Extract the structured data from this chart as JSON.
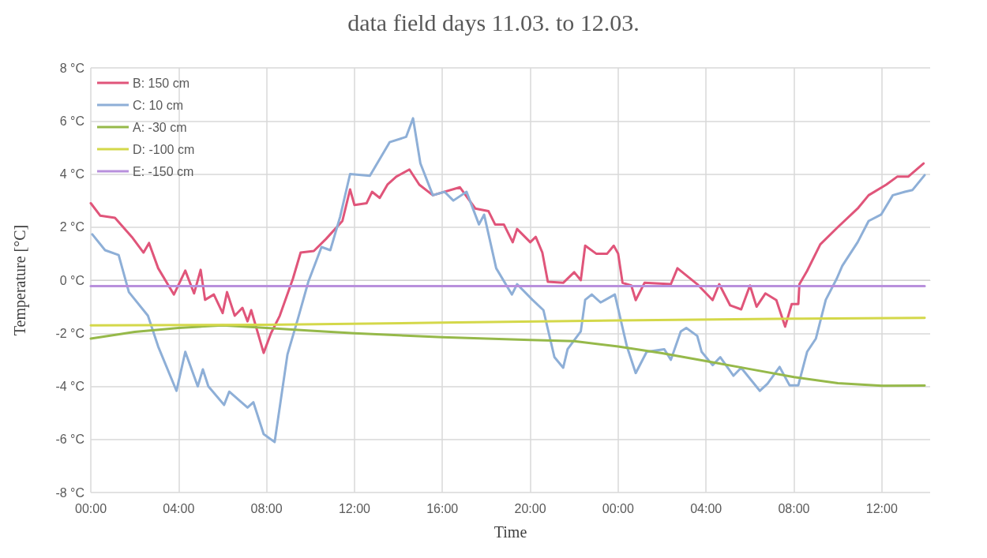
{
  "chart_data": {
    "type": "line",
    "title": "data field days 11.03. to 12.03.",
    "xlabel": "Time",
    "ylabel": "Temperature [°C]",
    "xlim": [
      "--03-11T00:00",
      "--03-12T14:12"
    ],
    "xticks": [
      {
        "value": "--03-11T00:00",
        "label": "00:00"
      },
      {
        "value": "--03-11T04:00",
        "label": "04:00"
      },
      {
        "value": "--03-11T08:00",
        "label": "08:00"
      },
      {
        "value": "--03-11T12:00",
        "label": "12:00"
      },
      {
        "value": "--03-11T16:00",
        "label": "16:00"
      },
      {
        "value": "--03-11T20:00",
        "label": "20:00"
      },
      {
        "value": "--03-12T00:00",
        "label": "00:00"
      },
      {
        "value": "--03-12T04:00",
        "label": "04:00"
      },
      {
        "value": "--03-12T08:00",
        "label": "08:00"
      },
      {
        "value": "--03-12T12:00",
        "label": "12:00"
      }
    ],
    "ylim": [
      -8,
      8
    ],
    "yticks": [
      {
        "value": -8,
        "label": "-8 °C"
      },
      {
        "value": -6,
        "label": "-6 °C"
      },
      {
        "value": -4,
        "label": "-4 °C"
      },
      {
        "value": -2,
        "label": "-2 °C"
      },
      {
        "value": 0,
        "label": "0 °C"
      },
      {
        "value": 2,
        "label": "2 °C"
      },
      {
        "value": 4,
        "label": "4 °C"
      },
      {
        "value": 6,
        "label": "6 °C"
      },
      {
        "value": 8,
        "label": "8 °C"
      }
    ],
    "grid": true,
    "legend": "top left",
    "marker": "none",
    "line_style": "solid",
    "series": [
      {
        "name": "B: 150 cm",
        "color": "#e0557a",
        "x": [
          "--03-11T00:00",
          "--03-11T00:26",
          "--03-11T01:06",
          "--03-11T01:52",
          "--03-11T02:24",
          "--03-11T02:39",
          "--03-11T03:04",
          "--03-11T03:47",
          "--03-11T04:18",
          "--03-11T04:42",
          "--03-11T05:00",
          "--03-11T05:12",
          "--03-11T05:36",
          "--03-11T06:00",
          "--03-11T06:12",
          "--03-11T06:33",
          "--03-11T06:54",
          "--03-11T07:08",
          "--03-11T07:18",
          "--03-11T07:52",
          "--03-11T08:12",
          "--03-11T08:36",
          "--03-11T09:12",
          "--03-11T09:33",
          "--03-11T10:09",
          "--03-11T10:42",
          "--03-11T11:27",
          "--03-11T11:48",
          "--03-11T12:00",
          "--03-11T12:33",
          "--03-11T12:48",
          "--03-11T13:09",
          "--03-11T13:30",
          "--03-11T13:54",
          "--03-11T14:30",
          "--03-11T14:57",
          "--03-11T15:34",
          "--03-11T16:48",
          "--03-11T17:30",
          "--03-11T18:06",
          "--03-11T18:24",
          "--03-11T18:48",
          "--03-11T19:12",
          "--03-11T19:24",
          "--03-11T20:00",
          "--03-11T20:15",
          "--03-11T20:33",
          "--03-11T20:48",
          "--03-11T21:30",
          "--03-11T22:00",
          "--03-11T22:18",
          "--03-11T22:30",
          "--03-11T23:00",
          "--03-11T23:30",
          "--03-11T23:48",
          "--03-12T00:00",
          "--03-12T00:12",
          "--03-12T00:36",
          "--03-12T00:48",
          "--03-12T01:12",
          "--03-12T02:24",
          "--03-12T02:42",
          "--03-12T03:36",
          "--03-12T04:18",
          "--03-12T04:36",
          "--03-12T05:06",
          "--03-12T05:36",
          "--03-12T06:00",
          "--03-12T06:18",
          "--03-12T06:42",
          "--03-12T07:12",
          "--03-12T07:36",
          "--03-12T07:54",
          "--03-12T08:12",
          "--03-12T08:15",
          "--03-12T08:36",
          "--03-12T09:12",
          "--03-12T10:00",
          "--03-12T10:54",
          "--03-12T11:24",
          "--03-12T12:12",
          "--03-12T12:42",
          "--03-12T13:12",
          "--03-12T13:54"
        ],
        "values": [
          2.9,
          2.43,
          2.35,
          1.63,
          1.04,
          1.4,
          0.45,
          -0.54,
          0.36,
          -0.5,
          0.39,
          -0.74,
          -0.54,
          -1.24,
          -0.45,
          -1.34,
          -1.04,
          -1.55,
          -1.13,
          -2.74,
          -2.0,
          -1.34,
          0.06,
          1.04,
          1.1,
          1.55,
          2.23,
          3.42,
          2.83,
          2.9,
          3.33,
          3.1,
          3.6,
          3.9,
          4.17,
          3.6,
          3.2,
          3.5,
          2.7,
          2.6,
          2.1,
          2.1,
          1.43,
          1.93,
          1.43,
          1.63,
          1.04,
          -0.06,
          -0.1,
          0.3,
          0.0,
          1.3,
          1.0,
          1.0,
          1.3,
          1.0,
          -0.1,
          -0.2,
          -0.75,
          -0.1,
          -0.15,
          0.45,
          -0.15,
          -0.75,
          -0.15,
          -0.95,
          -1.1,
          -0.2,
          -1.0,
          -0.5,
          -0.75,
          -1.75,
          -0.9,
          -0.9,
          -0.15,
          0.35,
          1.35,
          2.0,
          2.7,
          3.2,
          3.6,
          3.9,
          3.9,
          4.4
        ]
      },
      {
        "name": "C: 10 cm",
        "color": "#8eafd7",
        "x": [
          "--03-11T00:04",
          "--03-11T00:39",
          "--03-11T01:16",
          "--03-11T01:44",
          "--03-11T02:36",
          "--03-11T03:04",
          "--03-11T03:54",
          "--03-11T04:18",
          "--03-11T04:52",
          "--03-11T05:06",
          "--03-11T05:21",
          "--03-11T06:04",
          "--03-11T06:18",
          "--03-11T07:08",
          "--03-11T07:24",
          "--03-11T07:52",
          "--03-11T08:22",
          "--03-11T08:57",
          "--03-11T09:26",
          "--03-11T09:54",
          "--03-11T10:30",
          "--03-11T10:54",
          "--03-11T11:21",
          "--03-11T11:48",
          "--03-11T12:42",
          "--03-11T13:36",
          "--03-11T14:21",
          "--03-11T14:40",
          "--03-11T15:00",
          "--03-11T15:34",
          "--03-11T16:06",
          "--03-11T16:30",
          "--03-11T17:06",
          "--03-11T17:40",
          "--03-11T17:54",
          "--03-11T18:27",
          "--03-11T19:10",
          "--03-11T19:24",
          "--03-11T20:06",
          "--03-11T20:36",
          "--03-11T21:06",
          "--03-11T21:30",
          "--03-11T21:42",
          "--03-11T22:18",
          "--03-11T22:30",
          "--03-11T22:48",
          "--03-11T23:12",
          "--03-11T23:51",
          "--03-12T00:24",
          "--03-12T00:48",
          "--03-12T01:18",
          "--03-12T02:06",
          "--03-12T02:24",
          "--03-12T02:51",
          "--03-12T03:06",
          "--03-12T03:36",
          "--03-12T03:48",
          "--03-12T04:18",
          "--03-12T04:39",
          "--03-12T05:15",
          "--03-12T05:36",
          "--03-12T06:27",
          "--03-12T06:48",
          "--03-12T07:21",
          "--03-12T07:48",
          "--03-12T08:12",
          "--03-12T08:36",
          "--03-12T09:00",
          "--03-12T09:27",
          "--03-12T09:57",
          "--03-12T10:12",
          "--03-12T10:54",
          "--03-12T11:24",
          "--03-12T11:58",
          "--03-12T12:30",
          "--03-12T13:03",
          "--03-12T13:24",
          "--03-12T13:57"
        ],
        "values": [
          1.73,
          1.13,
          0.95,
          -0.45,
          -1.34,
          -2.5,
          -4.17,
          -2.7,
          -4.0,
          -3.36,
          -4.0,
          -4.7,
          -4.2,
          -4.8,
          -4.6,
          -5.8,
          -6.1,
          -2.8,
          -1.43,
          -0.06,
          1.25,
          1.13,
          2.4,
          4.0,
          3.93,
          5.2,
          5.4,
          6.1,
          4.4,
          3.2,
          3.33,
          3.0,
          3.33,
          2.1,
          2.47,
          0.45,
          -0.54,
          -0.15,
          -0.74,
          -1.13,
          -2.9,
          -3.3,
          -2.6,
          -1.93,
          -0.74,
          -0.54,
          -0.84,
          -0.54,
          -2.5,
          -3.5,
          -2.7,
          -2.6,
          -3.0,
          -1.93,
          -1.8,
          -2.1,
          -2.7,
          -3.2,
          -2.9,
          -3.6,
          -3.3,
          -4.17,
          -3.9,
          -3.27,
          -3.96,
          -3.96,
          -2.7,
          -2.2,
          -0.74,
          0.06,
          0.54,
          1.43,
          2.23,
          2.47,
          3.2,
          3.33,
          3.4,
          3.96
        ]
      },
      {
        "name": "A: -30 cm",
        "color": "#96b94a",
        "x": [
          "--03-11T00:00",
          "--03-11T02:00",
          "--03-11T04:00",
          "--03-11T06:00",
          "--03-11T08:00",
          "--03-11T10:00",
          "--03-11T12:00",
          "--03-11T16:00",
          "--03-11T20:00",
          "--03-11T22:00",
          "--03-12T00:00",
          "--03-12T02:00",
          "--03-12T04:00",
          "--03-12T06:00",
          "--03-12T08:00",
          "--03-12T10:00",
          "--03-12T12:00",
          "--03-12T13:57"
        ],
        "values": [
          -2.2,
          -1.95,
          -1.8,
          -1.7,
          -1.8,
          -1.9,
          -2.0,
          -2.15,
          -2.25,
          -2.3,
          -2.5,
          -2.75,
          -3.05,
          -3.35,
          -3.65,
          -3.88,
          -3.98,
          -3.97
        ]
      },
      {
        "name": "D: -100 cm",
        "color": "#d4d84a",
        "x": [
          "--03-11T00:00",
          "--03-11T08:00",
          "--03-11T16:00",
          "--03-12T00:00",
          "--03-12T08:00",
          "--03-12T13:57"
        ],
        "values": [
          -1.7,
          -1.68,
          -1.6,
          -1.52,
          -1.45,
          -1.42
        ]
      },
      {
        "name": "E: -150 cm",
        "color": "#b890dc",
        "x": [
          "--03-11T00:00",
          "--03-12T13:57"
        ],
        "values": [
          -0.22,
          -0.22
        ]
      }
    ]
  }
}
